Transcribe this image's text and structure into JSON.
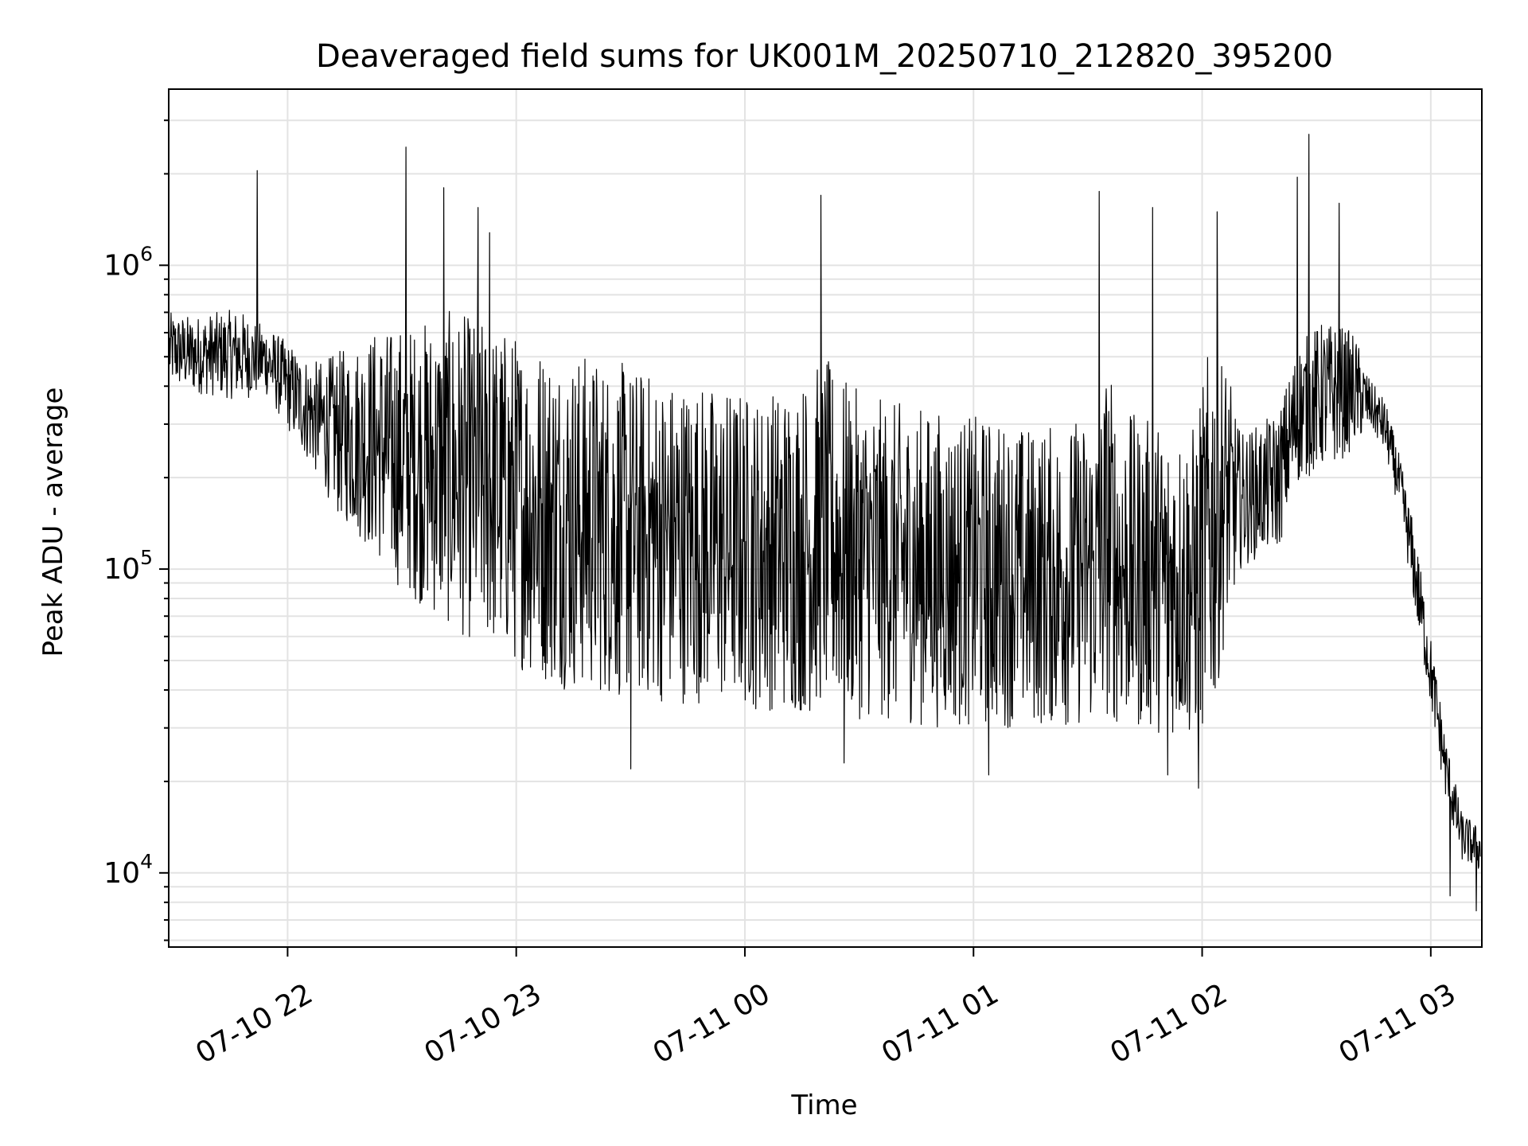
{
  "chart_data": {
    "type": "line",
    "title": "Deaveraged field sums for UK001M_20250710_212820_395200",
    "xlabel": "Time",
    "ylabel": "Peak ADU - average",
    "xlim": [
      "2025-07-10 21:28:48",
      "2025-07-11 03:13:24"
    ],
    "ylim": [
      5700,
      3800000
    ],
    "yscale": "log",
    "grid": true,
    "x_ticks": [
      {
        "value": "2025-07-10 22:00",
        "label": "07-10 22"
      },
      {
        "value": "2025-07-10 23:00",
        "label": "07-10 23"
      },
      {
        "value": "2025-07-11 00:00",
        "label": "07-11 00"
      },
      {
        "value": "2025-07-11 01:00",
        "label": "07-11 01"
      },
      {
        "value": "2025-07-11 02:00",
        "label": "07-11 02"
      },
      {
        "value": "2025-07-11 03:00",
        "label": "07-11 03"
      }
    ],
    "y_ticks": [
      {
        "value": 10000,
        "base": "10",
        "exp": "4"
      },
      {
        "value": 100000,
        "base": "10",
        "exp": "5"
      },
      {
        "value": 1000000,
        "base": "10",
        "exp": "6"
      }
    ],
    "line_color": "#000000",
    "series": [
      {
        "name": "",
        "x": [
          "2025-07-10 21:29",
          "2025-07-10 21:35",
          "2025-07-10 21:41",
          "2025-07-10 21:47",
          "2025-07-10 21:52",
          "2025-07-10 21:54",
          "2025-07-10 21:57",
          "2025-07-10 22:03",
          "2025-07-10 22:08",
          "2025-07-10 22:13",
          "2025-07-10 22:18",
          "2025-07-10 22:23",
          "2025-07-10 22:28",
          "2025-07-10 22:30",
          "2025-07-10 22:33",
          "2025-07-10 22:38",
          "2025-07-10 22:42",
          "2025-07-10 22:43",
          "2025-07-10 22:48",
          "2025-07-10 22:53",
          "2025-07-10 22:58",
          "2025-07-10 23:03",
          "2025-07-10 23:08",
          "2025-07-10 23:13",
          "2025-07-10 23:18",
          "2025-07-10 23:23",
          "2025-07-10 23:28",
          "2025-07-10 23:33",
          "2025-07-10 23:38",
          "2025-07-10 23:43",
          "2025-07-10 23:48",
          "2025-07-10 23:53",
          "2025-07-10 23:58",
          "2025-07-11 00:03",
          "2025-07-11 00:08",
          "2025-07-11 00:13",
          "2025-07-11 00:18",
          "2025-07-11 00:20",
          "2025-07-11 00:23",
          "2025-07-11 00:28",
          "2025-07-11 00:33",
          "2025-07-11 00:38",
          "2025-07-11 00:43",
          "2025-07-11 00:48",
          "2025-07-11 00:53",
          "2025-07-11 00:58",
          "2025-07-11 01:03",
          "2025-07-11 01:08",
          "2025-07-11 01:13",
          "2025-07-11 01:18",
          "2025-07-11 01:23",
          "2025-07-11 01:28",
          "2025-07-11 01:33",
          "2025-07-11 01:35",
          "2025-07-11 01:38",
          "2025-07-11 01:43",
          "2025-07-11 01:48",
          "2025-07-11 01:53",
          "2025-07-11 01:58",
          "2025-07-11 02:03",
          "2025-07-11 02:06",
          "2025-07-11 02:10",
          "2025-07-11 02:15",
          "2025-07-11 02:20",
          "2025-07-11 02:25",
          "2025-07-11 02:28",
          "2025-07-11 02:31",
          "2025-07-11 02:35",
          "2025-07-11 02:40",
          "2025-07-11 02:44",
          "2025-07-11 02:48",
          "2025-07-11 02:52",
          "2025-07-11 02:56",
          "2025-07-11 03:00",
          "2025-07-11 03:04",
          "2025-07-11 03:08",
          "2025-07-11 03:13"
        ],
        "low": [
          400000,
          380000,
          370000,
          360000,
          370000,
          380000,
          330000,
          250000,
          200000,
          150000,
          130000,
          110000,
          90000,
          85000,
          80000,
          70000,
          65000,
          62000,
          58000,
          55000,
          50000,
          45000,
          42000,
          40000,
          39000,
          38000,
          37000,
          37000,
          36000,
          36000,
          36000,
          35000,
          35000,
          34000,
          34000,
          33000,
          33000,
          35000,
          34000,
          32000,
          32000,
          31000,
          31000,
          30000,
          30000,
          30000,
          30000,
          30000,
          30000,
          30000,
          30000,
          30000,
          30000,
          32000,
          30000,
          29000,
          29000,
          28000,
          27000,
          32000,
          60000,
          100000,
          110000,
          115000,
          190000,
          200000,
          210000,
          220000,
          250000,
          290000,
          240000,
          150000,
          70000,
          35000,
          17000,
          11000,
          10000
        ],
        "high": [
          700000,
          680000,
          700000,
          720000,
          650000,
          650000,
          600000,
          520000,
          480000,
          520000,
          560000,
          620000,
          620000,
          640000,
          640000,
          680000,
          700000,
          720000,
          680000,
          640000,
          620000,
          580000,
          560000,
          530000,
          520000,
          500000,
          480000,
          460000,
          440000,
          430000,
          420000,
          400000,
          400000,
          380000,
          400000,
          420000,
          450000,
          500000,
          480000,
          400000,
          370000,
          360000,
          350000,
          340000,
          330000,
          320000,
          320000,
          310000,
          300000,
          300000,
          300000,
          320000,
          330000,
          500000,
          340000,
          320000,
          310000,
          300000,
          300000,
          650000,
          500000,
          280000,
          300000,
          330000,
          550000,
          600000,
          650000,
          650000,
          600000,
          420000,
          360000,
          230000,
          130000,
          60000,
          28000,
          16000,
          14000
        ],
        "spikes": [
          {
            "x": "2025-07-10 21:52",
            "y": 2050000
          },
          {
            "x": "2025-07-10 22:31",
            "y": 2450000
          },
          {
            "x": "2025-07-10 22:41",
            "y": 1800000
          },
          {
            "x": "2025-07-10 22:50",
            "y": 1550000
          },
          {
            "x": "2025-07-10 22:53",
            "y": 1280000
          },
          {
            "x": "2025-07-11 00:20",
            "y": 1700000
          },
          {
            "x": "2025-07-11 01:33",
            "y": 1750000
          },
          {
            "x": "2025-07-11 01:47",
            "y": 1550000
          },
          {
            "x": "2025-07-11 02:04",
            "y": 1500000
          },
          {
            "x": "2025-07-11 02:25",
            "y": 1950000
          },
          {
            "x": "2025-07-11 02:28",
            "y": 2700000
          },
          {
            "x": "2025-07-11 02:36",
            "y": 1600000
          },
          {
            "x": "2025-07-10 23:30",
            "y": 22000
          },
          {
            "x": "2025-07-11 00:26",
            "y": 23000
          },
          {
            "x": "2025-07-11 01:04",
            "y": 21000
          },
          {
            "x": "2025-07-11 01:51",
            "y": 21000
          },
          {
            "x": "2025-07-11 01:59",
            "y": 19000
          },
          {
            "x": "2025-07-11 03:12",
            "y": 7500
          },
          {
            "x": "2025-07-11 03:05",
            "y": 8400
          }
        ]
      }
    ]
  }
}
